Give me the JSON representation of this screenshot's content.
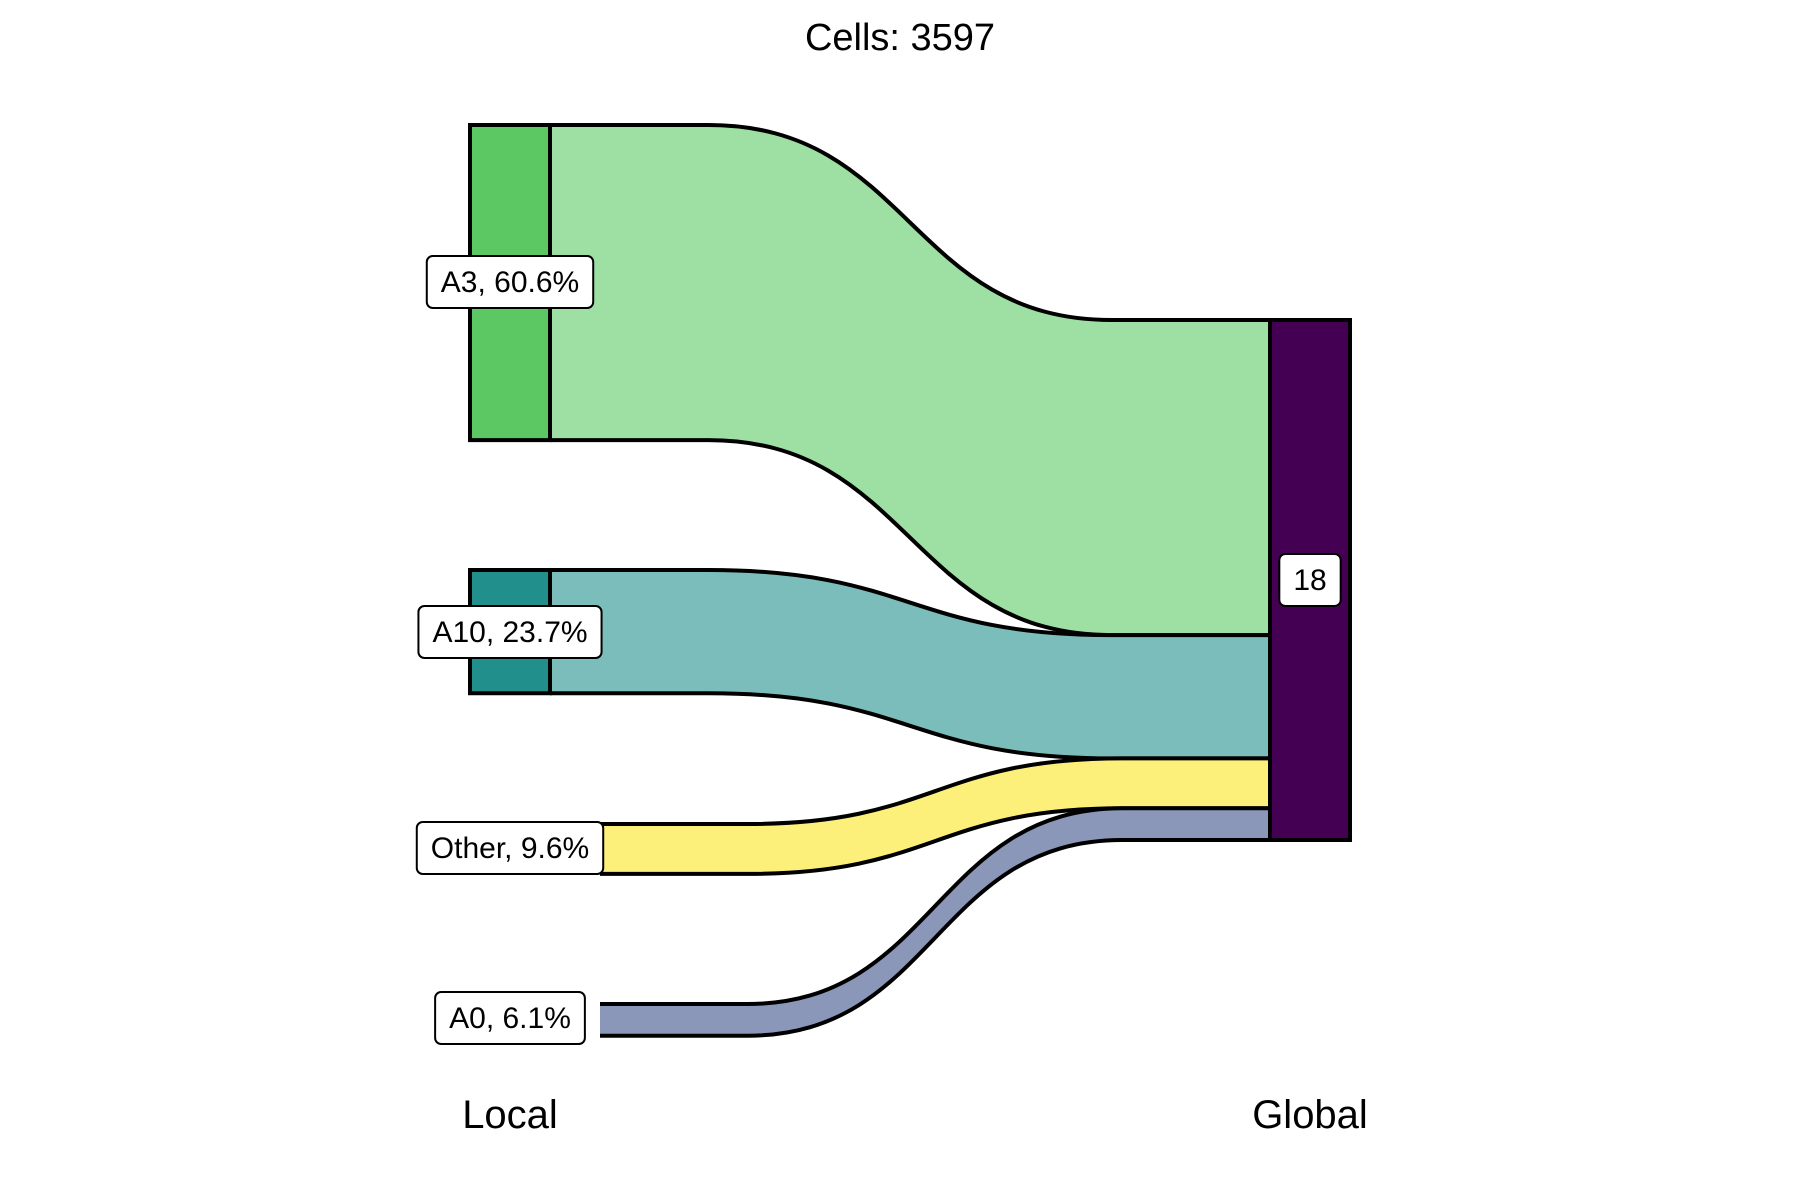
{
  "chart_data": {
    "type": "sankey",
    "title": "Cells:  3597",
    "total_cells": 3597,
    "axes": [
      "Local",
      "Global"
    ],
    "flows": [
      {
        "source": "A3",
        "target": "18",
        "percent": 60.6,
        "label": "A3, 60.6%",
        "color": "#9EDFA3",
        "node_color": "#5CC863"
      },
      {
        "source": "A10",
        "target": "18",
        "percent": 23.7,
        "label": "A10, 23.7%",
        "color": "#7BBDBA",
        "node_color": "#21908C"
      },
      {
        "source": "Other",
        "target": "18",
        "percent": 9.6,
        "label": "Other, 9.6%",
        "color": "#FDF07A",
        "node_color": null
      },
      {
        "source": "A0",
        "target": "18",
        "percent": 6.1,
        "label": "A0, 6.1%",
        "color": "#8A97B9",
        "node_color": null
      }
    ],
    "target_nodes": [
      {
        "label": "18",
        "color": "#440154"
      }
    ]
  }
}
